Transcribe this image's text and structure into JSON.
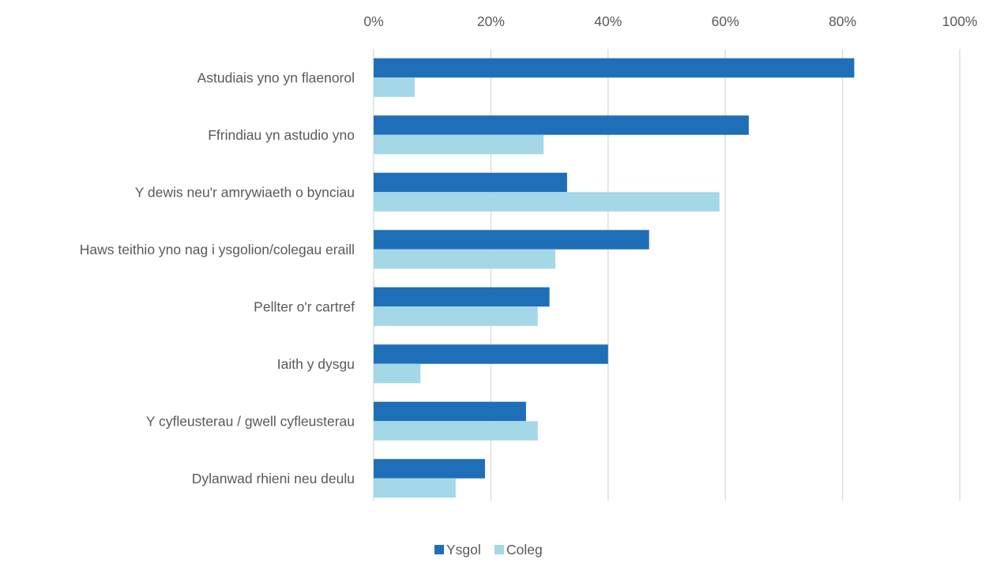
{
  "chart_data": {
    "type": "bar",
    "orientation": "horizontal",
    "categories": [
      "Astudiais yno yn flaenorol",
      "Ffrindiau yn astudio yno",
      "Y dewis neu'r amrywiaeth o bynciau",
      "Haws teithio yno nag i ysgolion/colegau eraill",
      "Pellter o'r cartref",
      "Iaith y dysgu",
      "Y cyfleusterau / gwell cyfleusterau",
      "Dylanwad rhieni neu deulu"
    ],
    "series": [
      {
        "name": "Ysgol",
        "color": "#1f6fb8",
        "values": [
          0.82,
          0.64,
          0.33,
          0.47,
          0.3,
          0.4,
          0.26,
          0.19
        ]
      },
      {
        "name": "Coleg",
        "color": "#a4d8e6",
        "values": [
          0.07,
          0.29,
          0.59,
          0.31,
          0.28,
          0.08,
          0.28,
          0.14
        ]
      }
    ],
    "xlim": [
      0,
      1
    ],
    "x_ticks": [
      "0%",
      "20%",
      "40%",
      "60%",
      "80%",
      "100%"
    ],
    "x_axis_position": "top",
    "grid": true,
    "legend_position": "bottom",
    "title": "",
    "xlabel": "",
    "ylabel": ""
  }
}
